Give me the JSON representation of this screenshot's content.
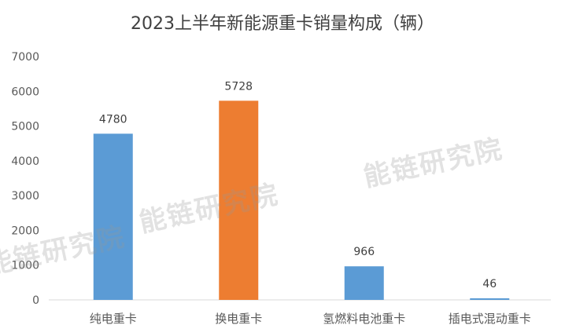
{
  "chart_data": {
    "type": "bar",
    "title": "2023上半年新能源重卡销量构成（辆）",
    "categories": [
      "纯电重卡",
      "换电重卡",
      "氢燃料电池重卡",
      "插电式混动重卡"
    ],
    "values": [
      4780,
      5728,
      966,
      46
    ],
    "colors": [
      "#5B9BD5",
      "#ED7D31",
      "#5B9BD5",
      "#5B9BD5"
    ],
    "yticks": [
      0,
      1000,
      2000,
      3000,
      4000,
      5000,
      6000,
      7000
    ],
    "ylim": [
      0,
      7000
    ],
    "xlabel": "",
    "ylabel": "",
    "grid": false,
    "legend": "none"
  },
  "watermark": "能链研究院"
}
